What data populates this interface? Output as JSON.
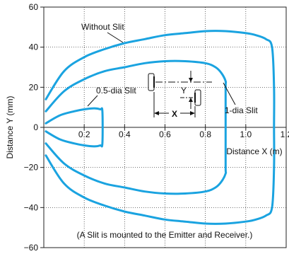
{
  "chart_data": {
    "type": "line",
    "xlabel": "Distance X (m)",
    "ylabel": "Distance Y (mm)",
    "xlim": [
      0,
      1.2
    ],
    "ylim": [
      -60,
      60
    ],
    "x_ticks": [
      0.2,
      0.4,
      0.6,
      0.8,
      1.0,
      1.2
    ],
    "x_tick_labels": [
      "0.2",
      "0.4",
      "0.6",
      "0.8",
      "1.0",
      "1.2"
    ],
    "y_ticks": [
      -60,
      -40,
      -20,
      0,
      20,
      40,
      60
    ],
    "y_tick_labels": [
      "−60",
      "−40",
      "−20",
      "0",
      "20",
      "40",
      "60"
    ],
    "grid": true,
    "series_color": "#1aa3e0",
    "series": [
      {
        "name": "Without Slit",
        "points": [
          [
            0.01,
            14
          ],
          [
            0.1,
            28
          ],
          [
            0.2,
            35
          ],
          [
            0.3,
            39
          ],
          [
            0.4,
            42
          ],
          [
            0.5,
            44
          ],
          [
            0.6,
            46
          ],
          [
            0.7,
            47
          ],
          [
            0.8,
            48
          ],
          [
            0.9,
            48
          ],
          [
            1.0,
            47
          ],
          [
            1.05,
            46
          ],
          [
            1.1,
            44
          ],
          [
            1.13,
            40
          ],
          [
            1.14,
            20
          ],
          [
            1.14,
            0
          ],
          [
            1.14,
            -20
          ],
          [
            1.13,
            -40
          ],
          [
            1.1,
            -44
          ],
          [
            1.05,
            -46
          ],
          [
            1.0,
            -47
          ],
          [
            0.9,
            -48
          ],
          [
            0.8,
            -48
          ],
          [
            0.7,
            -47
          ],
          [
            0.6,
            -46
          ],
          [
            0.5,
            -44
          ],
          [
            0.4,
            -42
          ],
          [
            0.3,
            -39
          ],
          [
            0.2,
            -35
          ],
          [
            0.1,
            -28
          ],
          [
            0.01,
            -14
          ]
        ]
      },
      {
        "name": "1-dia Slit",
        "points": [
          [
            0.01,
            8
          ],
          [
            0.1,
            18
          ],
          [
            0.2,
            24
          ],
          [
            0.3,
            28
          ],
          [
            0.4,
            30
          ],
          [
            0.5,
            32
          ],
          [
            0.6,
            33
          ],
          [
            0.7,
            33
          ],
          [
            0.8,
            32
          ],
          [
            0.85,
            30
          ],
          [
            0.88,
            27
          ],
          [
            0.9,
            23
          ],
          [
            0.9,
            20
          ],
          [
            0.9,
            0
          ],
          [
            0.9,
            -20
          ],
          [
            0.9,
            -23
          ],
          [
            0.88,
            -27
          ],
          [
            0.85,
            -30
          ],
          [
            0.8,
            -32
          ],
          [
            0.7,
            -33
          ],
          [
            0.6,
            -33
          ],
          [
            0.5,
            -32
          ],
          [
            0.4,
            -30
          ],
          [
            0.3,
            -28
          ],
          [
            0.2,
            -24
          ],
          [
            0.1,
            -18
          ],
          [
            0.01,
            -8
          ]
        ]
      },
      {
        "name": "0.5-dia Slit",
        "points": [
          [
            0.01,
            2
          ],
          [
            0.08,
            6
          ],
          [
            0.15,
            8
          ],
          [
            0.2,
            9
          ],
          [
            0.25,
            9.5
          ],
          [
            0.28,
            9
          ],
          [
            0.29,
            8
          ],
          [
            0.29,
            -8
          ],
          [
            0.28,
            -9
          ],
          [
            0.25,
            -9.5
          ],
          [
            0.2,
            -9
          ],
          [
            0.15,
            -8
          ],
          [
            0.08,
            -6
          ],
          [
            0.01,
            -2
          ]
        ]
      }
    ],
    "annotations": {
      "without_slit": "Without Slit",
      "one_dia_slit": "1-dia Slit",
      "half_dia_slit": "0.5-dia Slit",
      "x_marker": "X",
      "y_marker": "Y",
      "note": "(A Slit is mounted to the Emitter and Receiver.)"
    }
  }
}
